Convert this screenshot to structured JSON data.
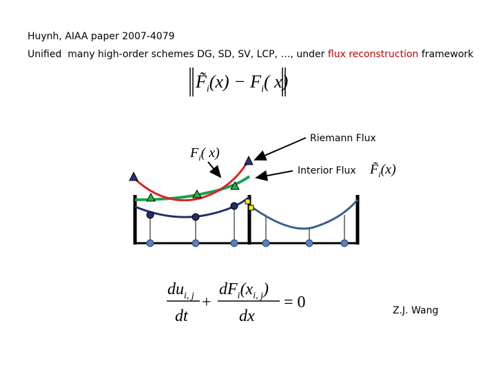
{
  "header": {
    "citation": "Huynh, AIAA paper 2007-4079",
    "summary": {
      "before": "Unified  many high-order schemes DG, SD, SV, LCP, …, under ",
      "highlight": "flux reconstruction",
      "after": " framework"
    }
  },
  "norm_formula": {
    "left": "F̃",
    "left_sub": "i",
    "left_arg": "(x) − F",
    "right_sub": "i",
    "right_arg": "( x)"
  },
  "labels": {
    "riemann_flux": "Riemann Flux",
    "interior_flux": "Interior Flux",
    "interior_symbol": {
      "main": "F",
      "sub": "i",
      "arg": "( x)"
    },
    "corrected_symbol": {
      "main": "F̃",
      "sub": "i",
      "arg": "(x)"
    }
  },
  "equation": {
    "num1": "du",
    "num1_sub": "i, j",
    "den1": "dt",
    "plus": "+",
    "num2": "dF",
    "num2_sub": "i",
    "num2_arg": "(x",
    "num2_arg_sub": "i, j",
    "num2_close": ")",
    "den2": "dx",
    "rhs": "= 0"
  },
  "author": "Z.J. Wang"
}
